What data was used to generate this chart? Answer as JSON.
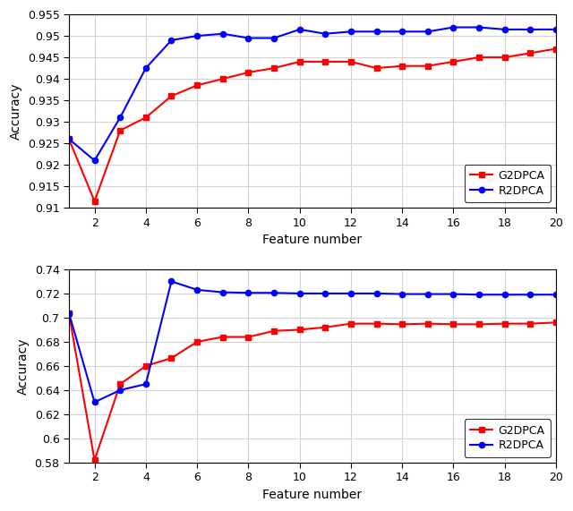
{
  "top": {
    "x": [
      1,
      2,
      3,
      4,
      5,
      6,
      7,
      8,
      9,
      10,
      11,
      12,
      13,
      14,
      15,
      16,
      17,
      18,
      19,
      20
    ],
    "g2dpca": [
      0.926,
      0.9115,
      0.928,
      0.931,
      0.936,
      0.9385,
      0.94,
      0.9415,
      0.9425,
      0.944,
      0.944,
      0.944,
      0.9425,
      0.943,
      0.943,
      0.944,
      0.945,
      0.945,
      0.946,
      0.947
    ],
    "r2dpca": [
      0.926,
      0.921,
      0.931,
      0.9425,
      0.949,
      0.95,
      0.9505,
      0.9495,
      0.9495,
      0.9515,
      0.9505,
      0.951,
      0.951,
      0.951,
      0.951,
      0.952,
      0.952,
      0.9515,
      0.9515,
      0.9515
    ],
    "ylim": [
      0.91,
      0.955
    ],
    "yticks": [
      0.91,
      0.915,
      0.92,
      0.925,
      0.93,
      0.935,
      0.94,
      0.945,
      0.95,
      0.955
    ],
    "ylabel": "Accuracy",
    "xlabel": "Feature number"
  },
  "bottom": {
    "x": [
      1,
      2,
      3,
      4,
      5,
      6,
      7,
      8,
      9,
      10,
      11,
      12,
      13,
      14,
      15,
      16,
      17,
      18,
      19,
      20
    ],
    "g2dpca": [
      0.7035,
      0.582,
      0.645,
      0.66,
      0.6665,
      0.68,
      0.684,
      0.684,
      0.689,
      0.69,
      0.692,
      0.695,
      0.695,
      0.6945,
      0.695,
      0.6945,
      0.6945,
      0.695,
      0.695,
      0.696
    ],
    "r2dpca": [
      0.704,
      0.63,
      0.64,
      0.645,
      0.73,
      0.723,
      0.721,
      0.7205,
      0.7205,
      0.72,
      0.72,
      0.72,
      0.72,
      0.7195,
      0.7195,
      0.7195,
      0.719,
      0.719,
      0.719,
      0.719
    ],
    "ylim": [
      0.58,
      0.74
    ],
    "yticks": [
      0.58,
      0.6,
      0.62,
      0.64,
      0.66,
      0.68,
      0.7,
      0.72,
      0.74
    ],
    "ylabel": "Accuracy",
    "xlabel": "Feature number"
  },
  "xticks": [
    2,
    4,
    6,
    8,
    10,
    12,
    14,
    16,
    18,
    20
  ],
  "red_color": "#FF0000",
  "blue_color": "#0000FF",
  "grid_color": "#D3D3D3",
  "bg_color": "#FFFFFF",
  "legend_g2dpca": "G2DPCA",
  "legend_r2dpca": "R2DPCA",
  "spine_color": "#000000",
  "tick_color": "#000000"
}
